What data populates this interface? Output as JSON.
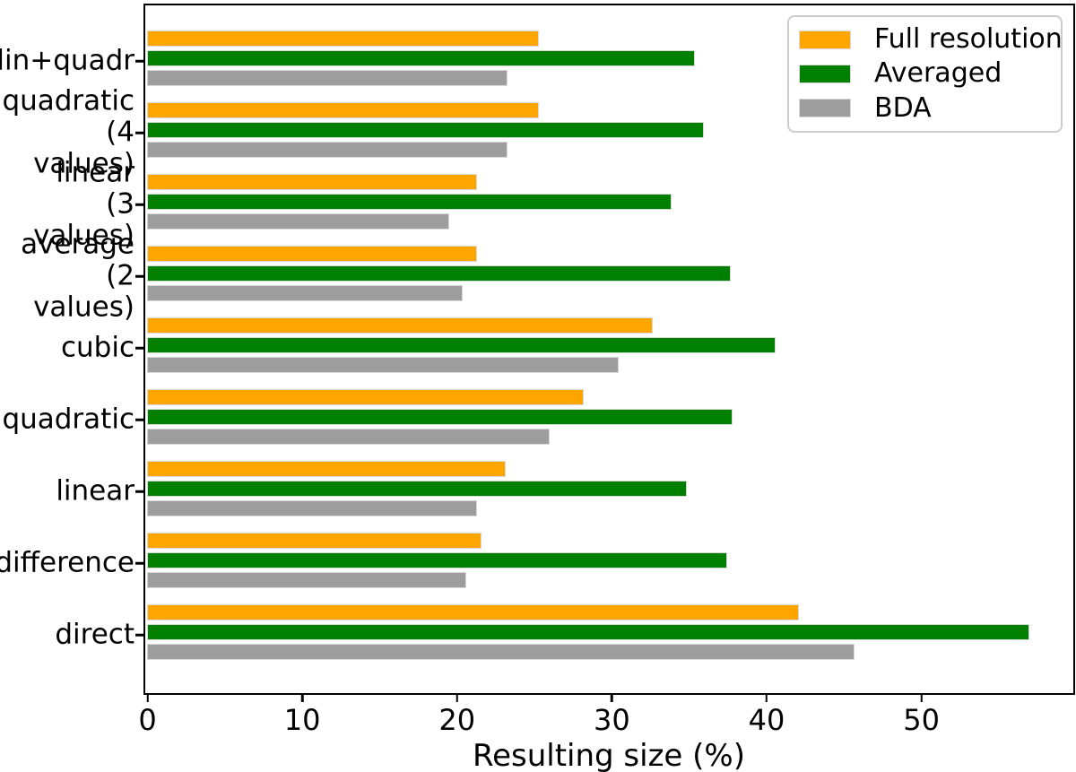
{
  "chart_data": {
    "type": "bar",
    "orientation": "horizontal",
    "title": "",
    "xlabel": "Resulting size (%)",
    "ylabel": "",
    "categories": [
      "lin+quadr",
      "quadratic\n(4 values)",
      "linear\n(3 values)",
      "average\n(2 values)",
      "cubic",
      "quadratic",
      "linear",
      "difference",
      "direct"
    ],
    "categories_order": "top-to-bottom",
    "series": [
      {
        "name": "Full resolution",
        "color": "#ffa500",
        "values": [
          25.3,
          25.3,
          21.3,
          21.3,
          32.7,
          28.2,
          23.2,
          21.6,
          42.1
        ]
      },
      {
        "name": "Averaged",
        "color": "#008000",
        "values": [
          35.4,
          36.0,
          33.9,
          37.7,
          40.6,
          37.8,
          34.9,
          37.5,
          57.0
        ]
      },
      {
        "name": "BDA",
        "color": "#9d9d9d",
        "values": [
          23.3,
          23.3,
          19.5,
          20.4,
          30.5,
          26.0,
          21.3,
          20.6,
          45.7
        ]
      }
    ],
    "xticks": [
      "0",
      "10",
      "20",
      "30",
      "40",
      "50"
    ],
    "xtick_values": [
      0,
      10,
      20,
      30,
      40,
      50
    ],
    "xlim": [
      0,
      59.9
    ],
    "grid": false,
    "legend_position": "upper right",
    "colors": {
      "bar_edge": "#d9d9d9",
      "axis": "#000000",
      "legend_border": "#cccccc",
      "background": "#ffffff"
    }
  }
}
